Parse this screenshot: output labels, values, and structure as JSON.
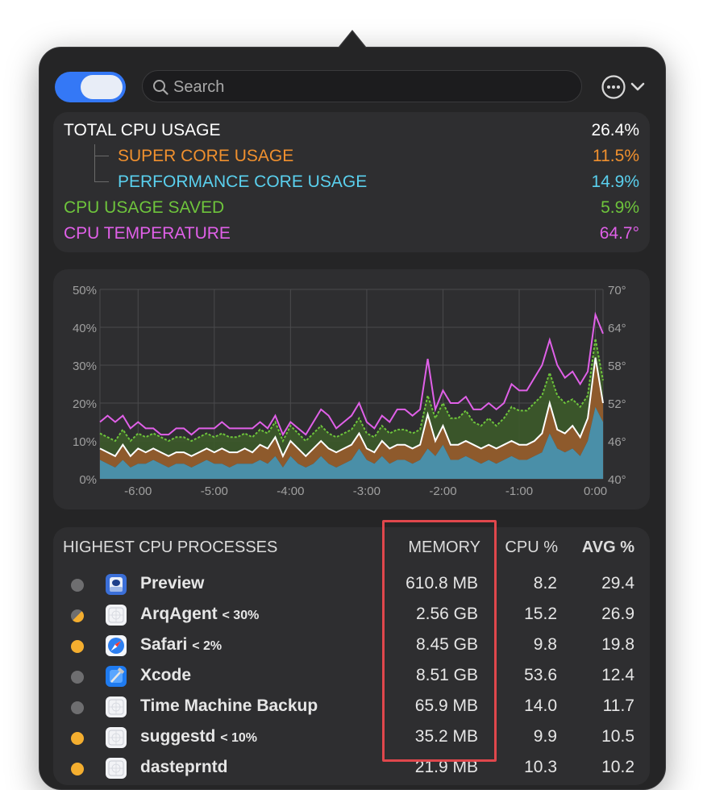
{
  "search": {
    "placeholder": "Search",
    "value": ""
  },
  "stats": {
    "total": {
      "label": "TOTAL CPU USAGE",
      "value": "26.4%",
      "color": "#ffffff"
    },
    "super": {
      "label": "SUPER CORE USAGE",
      "value": "11.5%",
      "color": "#f0902e"
    },
    "performance": {
      "label": "PERFORMANCE CORE USAGE",
      "value": "14.9%",
      "color": "#5ad0ee"
    },
    "saved": {
      "label": "CPU USAGE SAVED",
      "value": "5.9%",
      "color": "#6ec43c"
    },
    "temperature": {
      "label": "CPU TEMPERATURE",
      "value": "64.7°",
      "color": "#e060e8"
    }
  },
  "chart_data": {
    "type": "area",
    "x_tick_labels": [
      "-6:00",
      "-5:00",
      "-4:00",
      "-3:00",
      "-2:00",
      "-1:00",
      "0:00"
    ],
    "y_left_ticks": [
      "50%",
      "40%",
      "30%",
      "20%",
      "10%",
      "0%"
    ],
    "y_right_ticks": [
      "70°",
      "64°",
      "58°",
      "52°",
      "46°",
      "40°"
    ],
    "ylim_left": [
      0,
      50
    ],
    "ylim_right": [
      40,
      70
    ],
    "x_minutes": [
      -6.5,
      -6.4,
      -6.3,
      -6.2,
      -6.1,
      -6.0,
      -5.9,
      -5.8,
      -5.7,
      -5.6,
      -5.5,
      -5.4,
      -5.3,
      -5.2,
      -5.1,
      -5.0,
      -4.9,
      -4.8,
      -4.7,
      -4.6,
      -4.5,
      -4.4,
      -4.3,
      -4.2,
      -4.1,
      -4.0,
      -3.9,
      -3.8,
      -3.7,
      -3.6,
      -3.5,
      -3.4,
      -3.3,
      -3.2,
      -3.1,
      -3.0,
      -2.9,
      -2.8,
      -2.7,
      -2.6,
      -2.5,
      -2.4,
      -2.3,
      -2.2,
      -2.1,
      -2.0,
      -1.9,
      -1.8,
      -1.7,
      -1.6,
      -1.5,
      -1.4,
      -1.3,
      -1.2,
      -1.1,
      -1.0,
      -0.9,
      -0.8,
      -0.7,
      -0.6,
      -0.5,
      -0.4,
      -0.3,
      -0.2,
      -0.1,
      0.0,
      0.1
    ],
    "performance": [
      5,
      4,
      3,
      5,
      3,
      4,
      4,
      5,
      4,
      3,
      4,
      4,
      3,
      4,
      5,
      4,
      4,
      3,
      4,
      4,
      4,
      5,
      4,
      6,
      3,
      6,
      4,
      3,
      4,
      6,
      4,
      3,
      4,
      5,
      8,
      5,
      4,
      6,
      4,
      5,
      5,
      4,
      5,
      8,
      6,
      9,
      5,
      5,
      6,
      5,
      4,
      5,
      4,
      5,
      6,
      5,
      5,
      6,
      7,
      12,
      8,
      7,
      8,
      6,
      10,
      19,
      15
    ],
    "total": [
      8,
      7,
      6,
      9,
      6,
      8,
      7,
      8,
      7,
      6,
      7,
      7,
      6,
      7,
      8,
      7,
      8,
      7,
      7,
      8,
      7,
      9,
      8,
      11,
      6,
      10,
      8,
      6,
      8,
      10,
      8,
      7,
      8,
      9,
      12,
      8,
      7,
      10,
      8,
      9,
      9,
      8,
      9,
      17,
      10,
      14,
      9,
      9,
      10,
      9,
      8,
      9,
      8,
      9,
      10,
      9,
      9,
      10,
      12,
      20,
      13,
      12,
      14,
      11,
      16,
      32,
      20
    ],
    "saved": [
      12,
      11,
      10,
      13,
      10,
      12,
      11,
      12,
      11,
      10,
      11,
      11,
      10,
      11,
      12,
      11,
      12,
      11,
      11,
      12,
      11,
      13,
      12,
      15,
      10,
      14,
      12,
      10,
      12,
      14,
      12,
      11,
      12,
      13,
      16,
      12,
      11,
      14,
      12,
      13,
      13,
      12,
      13,
      22,
      16,
      20,
      16,
      16,
      18,
      15,
      14,
      16,
      14,
      16,
      19,
      18,
      18,
      20,
      22,
      28,
      22,
      20,
      21,
      19,
      22,
      37,
      26
    ],
    "temperature": [
      49,
      50,
      49,
      50,
      48,
      49,
      48,
      48,
      47,
      47,
      48,
      48,
      47,
      48,
      48,
      48,
      49,
      48,
      48,
      48,
      48,
      49,
      48,
      50,
      47,
      49,
      48,
      47,
      49,
      51,
      50,
      48,
      49,
      50,
      52,
      49,
      48,
      50,
      49,
      51,
      51,
      50,
      51,
      59,
      51,
      54,
      52,
      52,
      53,
      51,
      51,
      52,
      51,
      52,
      55,
      54,
      54,
      56,
      58,
      62,
      58,
      56,
      57,
      55,
      57,
      66,
      63
    ]
  },
  "processes": {
    "headers": {
      "name": "HIGHEST CPU PROCESSES",
      "memory": "MEMORY",
      "cpu": "CPU %",
      "avg": "AVG %"
    },
    "rows": [
      {
        "name": "Preview",
        "limit": "",
        "memory": "610.8 MB",
        "cpu": "8.2",
        "avg": "29.4",
        "status": "gray",
        "icon": "preview-icon"
      },
      {
        "name": "ArqAgent",
        "limit": "< 30%",
        "memory": "2.56 GB",
        "cpu": "15.2",
        "avg": "26.9",
        "status": "half",
        "icon": "generic-app-icon"
      },
      {
        "name": "Safari",
        "limit": "< 2%",
        "memory": "8.45 GB",
        "cpu": "9.8",
        "avg": "19.8",
        "status": "orange",
        "icon": "safari-icon"
      },
      {
        "name": "Xcode",
        "limit": "",
        "memory": "8.51 GB",
        "cpu": "53.6",
        "avg": "12.4",
        "status": "gray",
        "icon": "xcode-icon"
      },
      {
        "name": "Time Machine Backup",
        "limit": "",
        "memory": "65.9 MB",
        "cpu": "14.0",
        "avg": "11.7",
        "status": "gray",
        "icon": "generic-app-icon"
      },
      {
        "name": "suggestd",
        "limit": "< 10%",
        "memory": "35.2 MB",
        "cpu": "9.9",
        "avg": "10.5",
        "status": "orange",
        "icon": "generic-app-icon"
      },
      {
        "name": "dasteprntd",
        "limit": "",
        "memory": "21.9 MB",
        "cpu": "10.3",
        "avg": "10.2",
        "status": "orange",
        "icon": "generic-app-icon"
      }
    ]
  },
  "colors": {
    "accent": "#3478f6",
    "highlight": "#e0474c",
    "status_orange": "#f4ae2f",
    "status_gray": "#6e6e70"
  }
}
